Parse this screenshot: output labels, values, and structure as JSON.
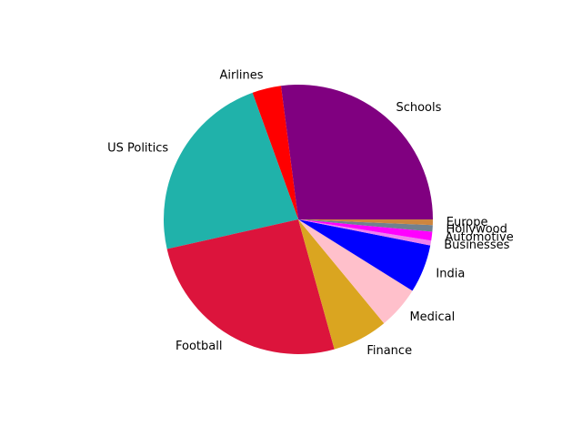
{
  "chart_data": {
    "type": "pie",
    "title": "",
    "start_angle_deg": 0,
    "direction": "counterclockwise",
    "slices": [
      {
        "label": "Schools",
        "value": 28.0,
        "color": "#800080"
      },
      {
        "label": "Airlines",
        "value": 3.6,
        "color": "#ff0000"
      },
      {
        "label": "US Politics",
        "value": 23.8,
        "color": "#20b2aa"
      },
      {
        "label": "Football",
        "value": 26.7,
        "color": "#dc143c"
      },
      {
        "label": "Finance",
        "value": 6.9,
        "color": "#daa520"
      },
      {
        "label": "Medical",
        "value": 5.3,
        "color": "#ffc0cb"
      },
      {
        "label": "India",
        "value": 6.0,
        "color": "#0000ff"
      },
      {
        "label": "Businesses",
        "value": 0.6,
        "color": "#ee82ee"
      },
      {
        "label": "Automotive",
        "value": 1.1,
        "color": "#ff00ff"
      },
      {
        "label": "Hollywood",
        "value": 0.8,
        "color": "#708090"
      },
      {
        "label": "Europe",
        "value": 0.7,
        "color": "#cd853f"
      }
    ]
  }
}
